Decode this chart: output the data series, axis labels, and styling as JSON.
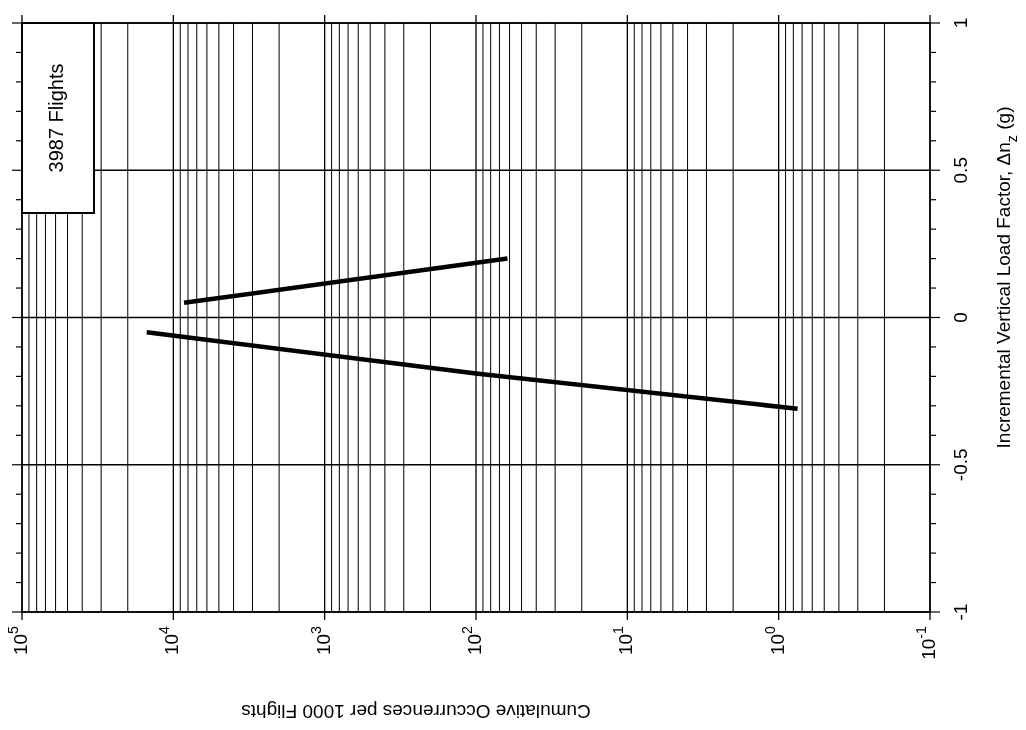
{
  "chart_data": {
    "type": "line",
    "xlabel": "Cumulative Occurrences per 1000 Flights",
    "ylabel": "Incremental Vertical Load Factor, Δn$_{z}$ (g)",
    "annotations": [
      "3987 Flights"
    ],
    "log": "x",
    "grid": true,
    "marker": "none",
    "line_style": "solid",
    "xlim": [
      100000,
      0.1
    ],
    "xticks": [
      {
        "value": 100000,
        "label": "10$^{5}$"
      },
      {
        "value": 10000,
        "label": "10$^{4}$"
      },
      {
        "value": 1000,
        "label": "10$^{3}$"
      },
      {
        "value": 100,
        "label": "10$^{2}$"
      },
      {
        "value": 10,
        "label": "10$^{1}$"
      },
      {
        "value": 1,
        "label": "10$^{0}$"
      },
      {
        "value": 0.1,
        "label": "10$^{-1}$"
      }
    ],
    "ylim": [
      -1,
      1
    ],
    "yticks": [
      -1,
      {
        "value": -0.9,
        "label": null
      },
      {
        "value": -0.8,
        "label": null
      },
      {
        "value": -0.7,
        "label": null
      },
      {
        "value": -0.6,
        "label": null
      },
      -0.5,
      {
        "value": -0.4,
        "label": null
      },
      {
        "value": -0.3,
        "label": null
      },
      {
        "value": -0.2,
        "label": null
      },
      {
        "value": -0.1,
        "label": null
      },
      0,
      {
        "value": 0.1,
        "label": null
      },
      {
        "value": 0.2,
        "label": null
      },
      {
        "value": 0.3,
        "label": null
      },
      {
        "value": 0.4,
        "label": null
      },
      0.5,
      {
        "value": 0.6,
        "label": null
      },
      {
        "value": 0.7,
        "label": null
      },
      {
        "value": 0.8,
        "label": null
      },
      {
        "value": 0.9,
        "label": null
      },
      1
    ],
    "series": [
      {
        "color": "#000000",
        "x": [
          8500,
          62
        ],
        "values": [
          0.05,
          0.2
        ]
      },
      {
        "color": "#000000",
        "x": [
          15000,
          100,
          0.75
        ],
        "values": [
          -0.05,
          -0.19,
          -0.31
        ]
      }
    ]
  }
}
